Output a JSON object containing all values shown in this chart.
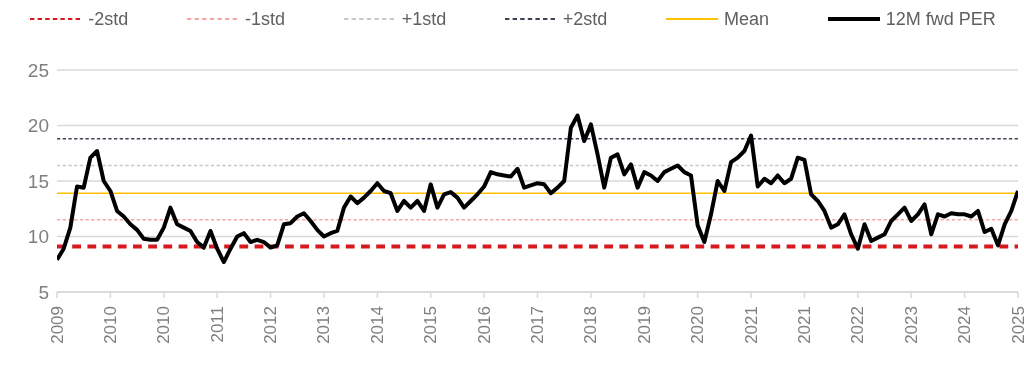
{
  "chart_data": {
    "type": "line",
    "categories": [
      "2009",
      null,
      null,
      null,
      null,
      null,
      null,
      null,
      "2010",
      null,
      null,
      null,
      null,
      null,
      null,
      null,
      "2010",
      null,
      null,
      null,
      null,
      null,
      null,
      null,
      "2011",
      null,
      null,
      null,
      null,
      null,
      null,
      null,
      "2012",
      null,
      null,
      null,
      null,
      null,
      null,
      null,
      "2013",
      null,
      null,
      null,
      null,
      null,
      null,
      null,
      "2014",
      null,
      null,
      null,
      null,
      null,
      null,
      null,
      "2015",
      null,
      null,
      null,
      null,
      null,
      null,
      null,
      "2016",
      null,
      null,
      null,
      null,
      null,
      null,
      null,
      "2017",
      null,
      null,
      null,
      null,
      null,
      null,
      null,
      "2018",
      null,
      null,
      null,
      null,
      null,
      null,
      null,
      "2019",
      null,
      null,
      null,
      null,
      null,
      null,
      null,
      "2020",
      null,
      null,
      null,
      null,
      null,
      null,
      null,
      "2021",
      null,
      null,
      null,
      null,
      null,
      null,
      null,
      "2021",
      null,
      null,
      null,
      null,
      null,
      null,
      null,
      "2022",
      null,
      null,
      null,
      null,
      null,
      null,
      null,
      "2023",
      null,
      null,
      null,
      null,
      null,
      null,
      null,
      "2024",
      null,
      null,
      null,
      null,
      null,
      null,
      null,
      "2025"
    ],
    "series": [
      {
        "name": "12M fwd PER",
        "color": "#000000",
        "values": [
          7.9,
          8.9,
          10.8,
          14.5,
          14.4,
          17.1,
          17.7,
          15.0,
          14.1,
          12.3,
          11.8,
          11.1,
          10.6,
          9.8,
          9.7,
          9.7,
          10.8,
          12.6,
          11.1,
          10.8,
          10.5,
          9.5,
          9.0,
          10.5,
          8.9,
          7.7,
          8.9,
          10.0,
          10.3,
          9.5,
          9.7,
          9.5,
          9.0,
          9.2,
          11.1,
          11.2,
          11.8,
          12.1,
          11.4,
          10.6,
          10.0,
          10.3,
          10.5,
          12.6,
          13.6,
          13.0,
          13.5,
          14.1,
          14.8,
          14.1,
          13.9,
          12.3,
          13.2,
          12.6,
          13.2,
          12.3,
          14.7,
          12.6,
          13.8,
          14.0,
          13.5,
          12.6,
          13.2,
          13.8,
          14.5,
          15.8,
          15.6,
          15.5,
          15.4,
          16.1,
          14.4,
          14.6,
          14.8,
          14.7,
          13.9,
          14.4,
          15.0,
          19.8,
          20.9,
          18.6,
          20.1,
          17.4,
          14.4,
          17.1,
          17.4,
          15.6,
          16.5,
          14.4,
          15.8,
          15.5,
          15.0,
          15.8,
          16.1,
          16.4,
          15.8,
          15.5,
          11.0,
          9.5,
          12.0,
          15.0,
          14.1,
          16.7,
          17.1,
          17.7,
          19.1,
          14.5,
          15.2,
          14.8,
          15.5,
          14.8,
          15.2,
          17.1,
          16.9,
          13.8,
          13.2,
          12.3,
          10.8,
          11.1,
          12.0,
          10.2,
          8.9,
          11.1,
          9.6,
          9.9,
          10.2,
          11.4,
          12.0,
          12.6,
          11.4,
          12.0,
          12.9,
          10.2,
          12.0,
          11.8,
          12.1,
          12.0,
          12.0,
          11.8,
          12.3,
          10.4,
          10.7,
          9.2,
          11.1,
          12.3,
          14.1
        ]
      }
    ],
    "ref_lines": [
      {
        "axis": "y",
        "value": 9.1,
        "label": "-2std",
        "color": "#d7191f",
        "line_style": "dashed"
      },
      {
        "axis": "y",
        "value": 11.5,
        "label": "-1std",
        "color": "#f4a6a6",
        "line_style": "dashed"
      },
      {
        "axis": "y",
        "value": 16.4,
        "label": "+1std",
        "color": "#c8c8c8",
        "line_style": "dashed"
      },
      {
        "axis": "y",
        "value": 18.8,
        "label": "+2std",
        "color": "#3a4254",
        "line_style": "dashed"
      },
      {
        "axis": "y",
        "value": 13.9,
        "label": "Mean",
        "color": "#ffc000",
        "line_style": "solid"
      }
    ],
    "ylim": [
      5,
      25
    ],
    "yticks": [
      5,
      10,
      15,
      20,
      25
    ],
    "grid": "y",
    "legend": "top",
    "marker": "none",
    "line_style": "solid"
  }
}
